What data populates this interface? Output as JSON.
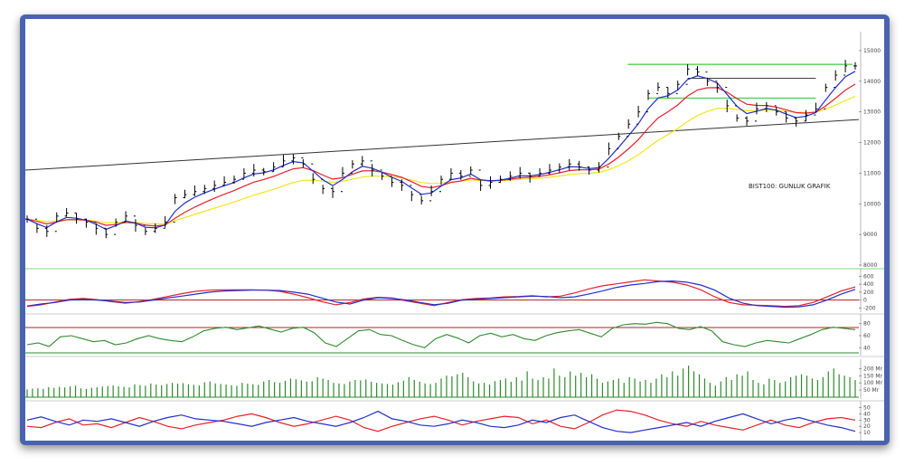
{
  "colors": {
    "frame": "#4a63b0",
    "price_bar": "#000000",
    "ma_fast": "#1f2fd0",
    "ma_mid": "#e8202a",
    "ma_slow": "#f2e61a",
    "resistance": "#56d256",
    "macd": "#1f2fd0",
    "signal": "#e8202a",
    "rsi": "#2e8b2e",
    "volume": "#2e8b2e",
    "di_plus": "#1f2fd0",
    "di_minus": "#e8202a",
    "reference": "#b02020"
  },
  "chart_data": [
    {
      "type": "line",
      "title": "BIST100: GUNLUK GRAFIK",
      "panel": "price",
      "yticks": [
        "15000",
        "14000",
        "13000",
        "12000",
        "11000",
        "10000",
        "9000",
        "8000"
      ],
      "ylim": [
        8000,
        15500
      ],
      "series": [
        {
          "values": [
            9500,
            9200,
            9100,
            9600,
            9700,
            9500,
            9400,
            9200,
            9000,
            9400,
            9600,
            9300,
            9100,
            9200,
            9400,
            10200,
            10300,
            10400,
            10500,
            10600,
            10700,
            10800,
            11000,
            11100,
            11050,
            11200,
            11400,
            11500,
            11300,
            10800,
            10500,
            10400,
            11000,
            11300,
            11400,
            11100,
            10900,
            10700,
            10600,
            10300,
            10100,
            10400,
            10800,
            11000,
            10900,
            11100,
            10600,
            10700,
            10800,
            10900,
            11000,
            10900,
            11000,
            11100,
            11200,
            11300,
            11200,
            11100,
            11200,
            11800,
            12200,
            12600,
            13000,
            13600,
            13800,
            13600,
            13900,
            14400,
            14300,
            14000,
            13800,
            13200,
            12800,
            12700,
            13100,
            13200,
            13000,
            12800,
            12700,
            12900,
            13100,
            13800,
            14200,
            14500,
            14500
          ]
        }
      ]
    },
    {
      "type": "line",
      "panel": "macd",
      "yticks": [
        "600",
        "400",
        "200",
        "0",
        "-200"
      ],
      "ylim": [
        -260,
        700
      ],
      "series": [
        {
          "values": [
            -150,
            -100,
            -60,
            0,
            20,
            0,
            -30,
            -60,
            -50,
            0,
            50,
            100,
            150,
            200,
            230,
            240,
            250,
            250,
            240,
            200,
            150,
            50,
            -50,
            -100,
            0,
            60,
            40,
            0,
            -60,
            -120,
            -80,
            0,
            20,
            40,
            60,
            80,
            100,
            90,
            60,
            80,
            150,
            230,
            320,
            380,
            420,
            470,
            480,
            450,
            380,
            250,
            50,
            -80,
            -140,
            -160,
            -180,
            -170,
            -120,
            0,
            150,
            270
          ]
        },
        {
          "values": [
            -160,
            -120,
            -50,
            20,
            40,
            10,
            -40,
            -80,
            -40,
            20,
            90,
            160,
            220,
            250,
            260,
            260,
            260,
            250,
            220,
            150,
            60,
            -40,
            -120,
            -60,
            30,
            70,
            50,
            -20,
            -80,
            -140,
            -60,
            10,
            40,
            50,
            80,
            90,
            110,
            80,
            100,
            180,
            280,
            360,
            410,
            460,
            510,
            480,
            450,
            380,
            260,
            80,
            -60,
            -120,
            -130,
            -140,
            -160,
            -140,
            -60,
            80,
            230,
            330
          ]
        }
      ]
    },
    {
      "type": "line",
      "panel": "rsi",
      "yticks": [
        "80",
        "60",
        "40"
      ],
      "ylim": [
        30,
        90
      ],
      "series": [
        {
          "values": [
            45,
            48,
            42,
            58,
            60,
            55,
            50,
            52,
            45,
            48,
            55,
            60,
            55,
            52,
            50,
            58,
            68,
            72,
            74,
            70,
            73,
            76,
            71,
            66,
            72,
            74,
            65,
            48,
            42,
            55,
            68,
            70,
            62,
            60,
            52,
            45,
            40,
            55,
            62,
            56,
            48,
            60,
            64,
            58,
            62,
            55,
            52,
            60,
            65,
            68,
            70,
            64,
            58,
            72,
            78,
            80,
            79,
            82,
            80,
            72,
            70,
            75,
            68,
            50,
            45,
            42,
            48,
            52,
            50,
            48,
            55,
            62,
            70,
            74,
            72,
            70
          ]
        }
      ]
    },
    {
      "type": "bar",
      "panel": "volume",
      "yticks": [
        "200 Mr",
        "150 Mr",
        "100 Mr",
        "50 Mr"
      ],
      "ylim": [
        0,
        240
      ],
      "values": [
        55,
        60,
        62,
        58,
        70,
        65,
        72,
        68,
        75,
        80,
        62,
        58,
        66,
        70,
        74,
        78,
        82,
        76,
        72,
        68,
        90,
        85,
        80,
        96,
        88,
        84,
        92,
        100,
        95,
        98,
        90,
        86,
        82,
        104,
        110,
        96,
        92,
        88,
        84,
        80,
        100,
        95,
        90,
        86,
        110,
        120,
        105,
        100,
        115,
        130,
        125,
        118,
        108,
        112,
        140,
        130,
        120,
        100,
        96,
        92,
        110,
        120,
        118,
        124,
        108,
        100,
        96,
        92,
        88,
        104,
        115,
        140,
        120,
        108,
        96,
        92,
        100,
        130,
        150,
        146,
        160,
        170,
        140,
        110,
        96,
        100,
        88,
        112,
        120,
        130,
        108,
        140,
        116,
        180,
        130,
        120,
        140,
        130,
        200,
        150,
        140,
        180,
        150,
        170,
        140,
        160,
        130,
        100,
        110,
        120,
        130,
        100,
        140,
        130,
        110,
        120,
        100,
        130,
        160,
        140,
        180,
        150,
        200,
        220,
        180,
        160,
        130,
        100,
        80,
        110,
        140,
        120,
        160,
        150,
        180,
        120,
        100,
        90,
        130,
        120,
        100,
        110,
        140,
        150,
        160,
        150,
        130,
        120,
        140,
        180,
        200,
        160,
        150,
        140,
        120
      ]
    },
    {
      "type": "line",
      "panel": "dmi",
      "yticks": [
        "50",
        "40",
        "30",
        "20",
        "10"
      ],
      "ylim": [
        0,
        55
      ],
      "series": [
        {
          "values": [
            30,
            35,
            28,
            22,
            30,
            28,
            32,
            26,
            20,
            28,
            34,
            38,
            32,
            30,
            28,
            24,
            20,
            26,
            30,
            34,
            28,
            24,
            20,
            26,
            34,
            44,
            32,
            28,
            22,
            20,
            24,
            30,
            26,
            20,
            18,
            22,
            30,
            26,
            34,
            38,
            28,
            18,
            12,
            10,
            14,
            18,
            22,
            26,
            20,
            28,
            34,
            40,
            32,
            24,
            30,
            34,
            28,
            22,
            18,
            12
          ]
        },
        {
          "values": [
            20,
            18,
            26,
            32,
            22,
            24,
            18,
            26,
            34,
            28,
            20,
            16,
            22,
            26,
            30,
            36,
            40,
            34,
            26,
            20,
            24,
            30,
            36,
            30,
            18,
            12,
            20,
            26,
            32,
            36,
            30,
            22,
            28,
            32,
            36,
            34,
            24,
            30,
            20,
            16,
            26,
            38,
            46,
            44,
            38,
            30,
            24,
            20,
            28,
            22,
            18,
            14,
            22,
            30,
            22,
            18,
            26,
            32,
            34,
            30
          ]
        }
      ]
    }
  ]
}
